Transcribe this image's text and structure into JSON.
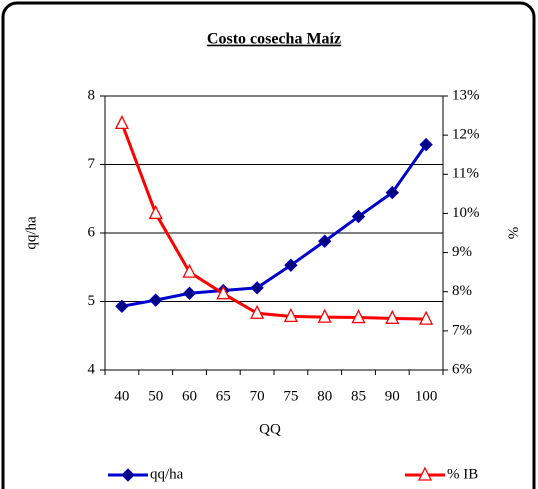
{
  "chart_data": {
    "type": "line",
    "title": "Costo cosecha Maíz",
    "x_label": "QQ",
    "y_label": "qq/ha",
    "y2_label": "%",
    "categories": [
      40,
      50,
      60,
      65,
      70,
      75,
      80,
      85,
      90,
      100
    ],
    "series": [
      {
        "name": "qq/ha",
        "color": "#0000cc",
        "marker_color": "#000080",
        "marker": "diamond",
        "values": [
          4.93,
          5.02,
          5.12,
          5.16,
          5.2,
          5.53,
          5.88,
          6.24,
          6.59,
          7.29
        ]
      },
      {
        "name": "% IB",
        "color": "#ff0000",
        "marker_color": "#ff0000",
        "marker": "triangle",
        "axis": "y2",
        "values": [
          12.3,
          10.0,
          8.5,
          7.95,
          7.45,
          7.37,
          7.35,
          7.34,
          7.32,
          7.3
        ]
      }
    ],
    "ylim": [
      4,
      8
    ],
    "yticks": [
      4,
      5,
      6,
      7,
      8
    ],
    "y2lim": [
      6,
      13
    ],
    "y2ticks": [
      {
        "value": 6,
        "label": "6%"
      },
      {
        "value": 7,
        "label": "7%"
      },
      {
        "value": 8,
        "label": "8%"
      },
      {
        "value": 9,
        "label": "9%"
      },
      {
        "value": 10,
        "label": "10%"
      },
      {
        "value": 11,
        "label": "11%"
      },
      {
        "value": 12,
        "label": "12%"
      },
      {
        "value": 13,
        "label": "13%"
      }
    ],
    "grid": true,
    "legend": "bottom"
  }
}
